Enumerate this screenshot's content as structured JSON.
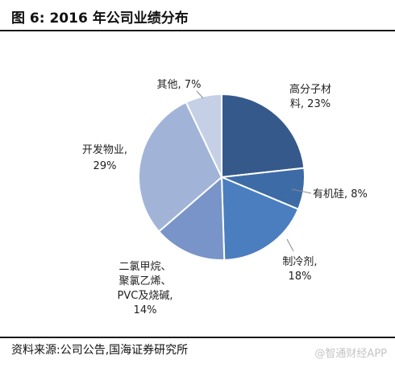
{
  "header": {
    "title": "图 6:  2016 年公司业绩分布"
  },
  "chart_data": {
    "type": "pie",
    "slices": [
      {
        "name": "高分子材料",
        "value": 23,
        "label_lines": [
          "高分子材",
          "料,  23%"
        ],
        "color": "#35598b"
      },
      {
        "name": "有机硅",
        "value": 8,
        "label_lines": [
          "有机硅,  8%"
        ],
        "color": "#3d6ba6"
      },
      {
        "name": "制冷剂",
        "value": 18,
        "label_lines": [
          "制冷剂,",
          "18%"
        ],
        "color": "#4a7ebf"
      },
      {
        "name": "二氯甲烷、聚氯乙烯、PVC及烧碱",
        "value": 14,
        "label_lines": [
          "二氯甲烷、",
          "聚氯乙烯、",
          "PVC及烧碱,",
          "14%"
        ],
        "color": "#7894c8"
      },
      {
        "name": "开发物业",
        "value": 29,
        "label_lines": [
          "开发物业,",
          "29%"
        ],
        "color": "#a1b4d8"
      },
      {
        "name": "其他",
        "value": 7,
        "label_lines": [
          "其他,  7%"
        ],
        "color": "#c5d0e6"
      }
    ]
  },
  "footer": {
    "source": "资料来源:公司公告,国海证券研究所",
    "watermark": "@智通财经APP"
  }
}
